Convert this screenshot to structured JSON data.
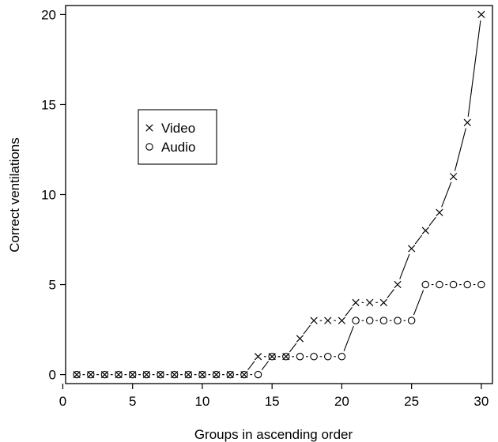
{
  "chart_data": {
    "type": "line",
    "xlabel": "Groups in ascending order",
    "ylabel": "Correct ventilations",
    "xlim": [
      0.2,
      30.8
    ],
    "ylim": [
      -0.5,
      20.5
    ],
    "xticks": [
      0,
      5,
      10,
      15,
      20,
      25,
      30
    ],
    "yticks": [
      0,
      5,
      10,
      15,
      20
    ],
    "legend": {
      "position": "upper-left-inside"
    },
    "series": [
      {
        "name": "Video",
        "marker": "x",
        "x": [
          1,
          2,
          3,
          4,
          5,
          6,
          7,
          8,
          9,
          10,
          11,
          12,
          13,
          14,
          15,
          16,
          17,
          18,
          19,
          20,
          21,
          22,
          23,
          24,
          25,
          26,
          27,
          28,
          29,
          30
        ],
        "y": [
          0,
          0,
          0,
          0,
          0,
          0,
          0,
          0,
          0,
          0,
          0,
          0,
          0,
          1,
          1,
          1,
          2,
          3,
          3,
          3,
          4,
          4,
          4,
          5,
          7,
          8,
          9,
          11,
          14,
          20
        ]
      },
      {
        "name": "Audio",
        "marker": "o",
        "x": [
          1,
          2,
          3,
          4,
          5,
          6,
          7,
          8,
          9,
          10,
          11,
          12,
          13,
          14,
          15,
          16,
          17,
          18,
          19,
          20,
          21,
          22,
          23,
          24,
          25,
          26,
          27,
          28,
          29,
          30
        ],
        "y": [
          0,
          0,
          0,
          0,
          0,
          0,
          0,
          0,
          0,
          0,
          0,
          0,
          0,
          0,
          1,
          1,
          1,
          1,
          1,
          1,
          3,
          3,
          3,
          3,
          3,
          5,
          5,
          5,
          5,
          5
        ]
      }
    ]
  }
}
